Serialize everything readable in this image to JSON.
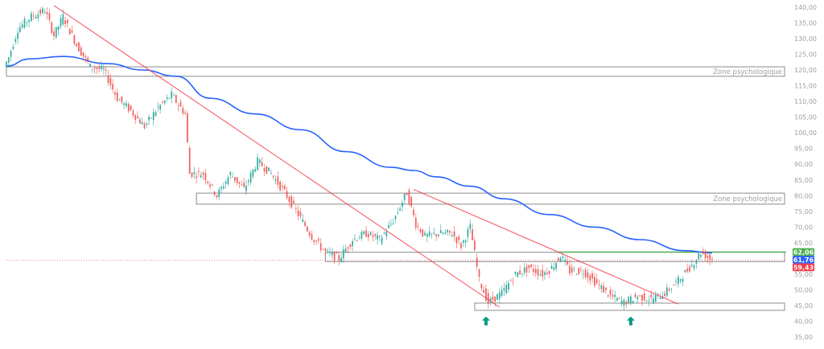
{
  "chart_data": {
    "type": "candlestick",
    "x_axis": "none",
    "y_axis": {
      "range": [
        33.5,
        141.5
      ],
      "ticks": [
        "140,00",
        "135,00",
        "130,00",
        "125,00",
        "120,00",
        "115,00",
        "110,00",
        "105,00",
        "100,00",
        "95,00",
        "90,00",
        "85,00",
        "80,00",
        "75,00",
        "70,00",
        "65,00",
        "60,00",
        "55,00",
        "50,00",
        "45,00",
        "40,00",
        "35,00"
      ],
      "tick_values": [
        140,
        135,
        130,
        125,
        120,
        115,
        110,
        105,
        100,
        95,
        90,
        85,
        80,
        75,
        70,
        65,
        60,
        55,
        50,
        45,
        40,
        35
      ],
      "position": "right"
    },
    "grid": false,
    "colors": {
      "up": "#26a69a",
      "down": "#ef5350",
      "moving_average": "#2962ff",
      "trendline": "#f23645",
      "zone_border": "#9e9e9e",
      "horizontal_line": "#4caf50",
      "marker": "#089981"
    },
    "candle_path": [
      {
        "t": 0,
        "p": 121
      },
      {
        "t": 2,
        "p": 124
      },
      {
        "t": 6,
        "p": 133
      },
      {
        "t": 12,
        "p": 137
      },
      {
        "t": 18,
        "p": 139
      },
      {
        "t": 22,
        "p": 131
      },
      {
        "t": 26,
        "p": 137
      },
      {
        "t": 32,
        "p": 128
      },
      {
        "t": 38,
        "p": 121
      },
      {
        "t": 44,
        "p": 120
      },
      {
        "t": 50,
        "p": 111
      },
      {
        "t": 56,
        "p": 107
      },
      {
        "t": 62,
        "p": 102
      },
      {
        "t": 68,
        "p": 108
      },
      {
        "t": 74,
        "p": 112
      },
      {
        "t": 80,
        "p": 106
      },
      {
        "t": 82,
        "p": 87
      },
      {
        "t": 88,
        "p": 87
      },
      {
        "t": 94,
        "p": 80
      },
      {
        "t": 100,
        "p": 87
      },
      {
        "t": 106,
        "p": 82
      },
      {
        "t": 112,
        "p": 91
      },
      {
        "t": 118,
        "p": 87
      },
      {
        "t": 124,
        "p": 81
      },
      {
        "t": 130,
        "p": 74
      },
      {
        "t": 136,
        "p": 67
      },
      {
        "t": 142,
        "p": 62
      },
      {
        "t": 148,
        "p": 60
      },
      {
        "t": 154,
        "p": 66
      },
      {
        "t": 160,
        "p": 68
      },
      {
        "t": 166,
        "p": 66
      },
      {
        "t": 172,
        "p": 72
      },
      {
        "t": 178,
        "p": 81
      },
      {
        "t": 182,
        "p": 71
      },
      {
        "t": 186,
        "p": 67
      },
      {
        "t": 192,
        "p": 68
      },
      {
        "t": 198,
        "p": 68
      },
      {
        "t": 202,
        "p": 64
      },
      {
        "t": 206,
        "p": 70
      },
      {
        "t": 210,
        "p": 53
      },
      {
        "t": 214,
        "p": 46
      },
      {
        "t": 220,
        "p": 49
      },
      {
        "t": 226,
        "p": 55
      },
      {
        "t": 232,
        "p": 57
      },
      {
        "t": 238,
        "p": 55
      },
      {
        "t": 242,
        "p": 57
      },
      {
        "t": 246,
        "p": 61
      },
      {
        "t": 250,
        "p": 56
      },
      {
        "t": 256,
        "p": 56
      },
      {
        "t": 262,
        "p": 52
      },
      {
        "t": 268,
        "p": 48
      },
      {
        "t": 274,
        "p": 46
      },
      {
        "t": 280,
        "p": 48
      },
      {
        "t": 286,
        "p": 47
      },
      {
        "t": 292,
        "p": 49
      },
      {
        "t": 298,
        "p": 53
      },
      {
        "t": 304,
        "p": 58
      },
      {
        "t": 308,
        "p": 62
      },
      {
        "t": 312,
        "p": 60
      }
    ],
    "moving_average": [
      {
        "t": 0,
        "p": 121.2
      },
      {
        "t": 10,
        "p": 123.5
      },
      {
        "t": 25,
        "p": 124.3
      },
      {
        "t": 45,
        "p": 122
      },
      {
        "t": 60,
        "p": 120
      },
      {
        "t": 75,
        "p": 118
      },
      {
        "t": 90,
        "p": 111
      },
      {
        "t": 110,
        "p": 106
      },
      {
        "t": 130,
        "p": 101
      },
      {
        "t": 150,
        "p": 94
      },
      {
        "t": 170,
        "p": 89
      },
      {
        "t": 180,
        "p": 88
      },
      {
        "t": 190,
        "p": 86
      },
      {
        "t": 205,
        "p": 83
      },
      {
        "t": 220,
        "p": 79
      },
      {
        "t": 240,
        "p": 74
      },
      {
        "t": 260,
        "p": 70
      },
      {
        "t": 280,
        "p": 66
      },
      {
        "t": 300,
        "p": 62.5
      },
      {
        "t": 312,
        "p": 61.76
      }
    ],
    "trendlines": [
      {
        "from": {
          "t": 21,
          "p": 140.5
        },
        "to": {
          "t": 218,
          "p": 44.5
        }
      },
      {
        "from": {
          "t": 180,
          "p": 82
        },
        "to": {
          "t": 297,
          "p": 45.5
        }
      }
    ],
    "zones": [
      {
        "t_from": 0,
        "t_to": 344,
        "p_low": 118,
        "p_high": 121,
        "label": "Zone psychologique"
      },
      {
        "t_from": 84,
        "t_to": 344,
        "p_low": 77.3,
        "p_high": 80.8,
        "label": "Zone psychologique"
      },
      {
        "t_from": 141,
        "t_to": 344,
        "p_low": 59,
        "p_high": 62,
        "label": ""
      },
      {
        "t_from": 207,
        "t_to": 344,
        "p_low": 43.5,
        "p_high": 45.8,
        "label": ""
      }
    ],
    "horizontal_lines": [
      {
        "p": 62.06,
        "t_from": 244,
        "style": "solid",
        "color": "#4caf50"
      },
      {
        "p": 59.43,
        "t_from": 0,
        "style": "dotted",
        "color": "#f23645"
      }
    ],
    "markers": [
      {
        "t": 212,
        "p": 40,
        "type": "arrow-up"
      },
      {
        "t": 276,
        "p": 40,
        "type": "arrow-up"
      }
    ],
    "price_badges": [
      {
        "text": "62,06",
        "p": 62.06,
        "bg": "#4caf50",
        "fg": "#ffffff"
      },
      {
        "text": "61,76",
        "p": 61.76,
        "bg": "#2962ff",
        "fg": "#ffffff"
      },
      {
        "text": "59,43",
        "p": 59.43,
        "bg": "#f23645",
        "fg": "#ffffff"
      }
    ]
  }
}
